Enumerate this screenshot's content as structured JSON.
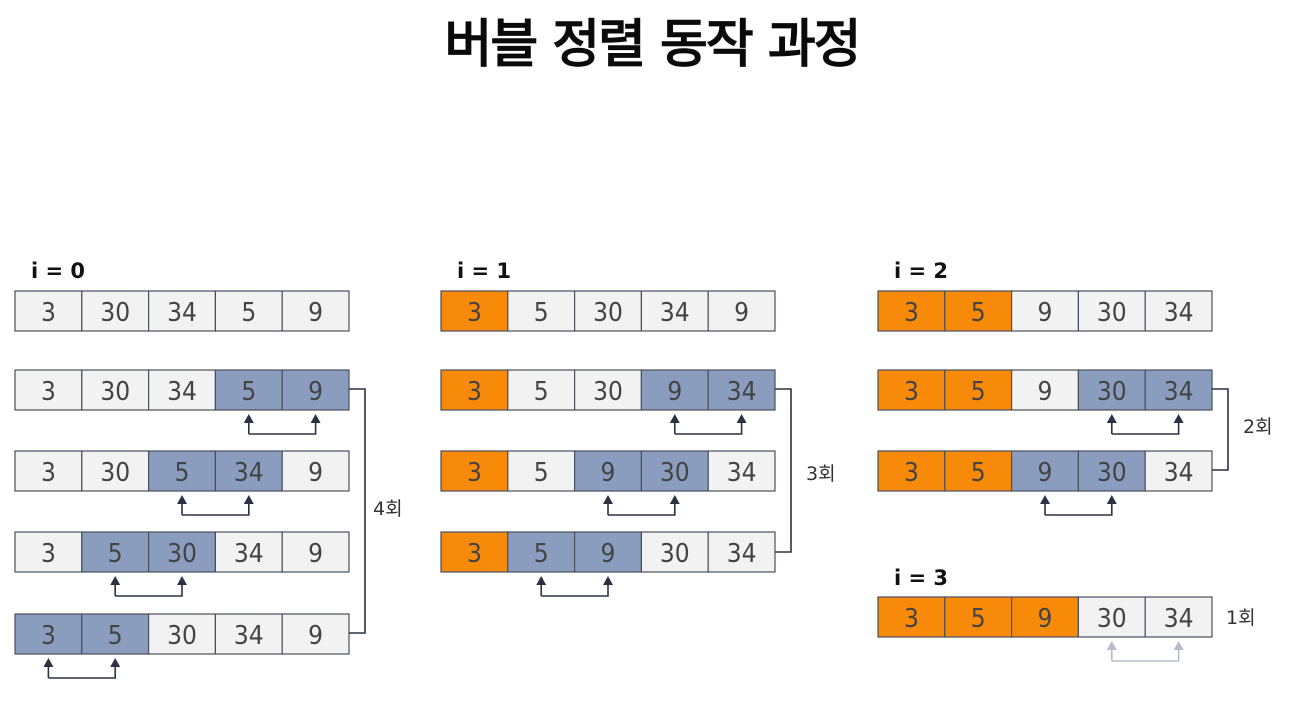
{
  "title": "버블 정렬 동작 과정",
  "colors": {
    "sorted": "#f88a0a",
    "compared": "#8a9dbf",
    "normal": "#f2f2f2",
    "border": "#4a4f5c",
    "arrow": "#2b3342",
    "arrow_faded": "#b4bec8"
  },
  "passes": [
    {
      "label": "i = 0",
      "count_label": "4회",
      "rows": [
        {
          "values": [
            "3",
            "30",
            "34",
            "5",
            "9"
          ],
          "states": [
            "n",
            "n",
            "n",
            "n",
            "n"
          ]
        },
        {
          "values": [
            "3",
            "30",
            "34",
            "5",
            "9"
          ],
          "states": [
            "n",
            "n",
            "n",
            "c",
            "c"
          ],
          "swap": [
            3,
            4
          ]
        },
        {
          "values": [
            "3",
            "30",
            "5",
            "34",
            "9"
          ],
          "states": [
            "n",
            "n",
            "c",
            "c",
            "n"
          ],
          "swap": [
            2,
            3
          ]
        },
        {
          "values": [
            "3",
            "5",
            "30",
            "34",
            "9"
          ],
          "states": [
            "n",
            "c",
            "c",
            "n",
            "n"
          ],
          "swap": [
            1,
            2
          ]
        },
        {
          "values": [
            "3",
            "5",
            "30",
            "34",
            "9"
          ],
          "states": [
            "c",
            "c",
            "n",
            "n",
            "n"
          ],
          "swap": [
            0,
            1
          ]
        }
      ]
    },
    {
      "label": "i = 1",
      "count_label": "3회",
      "rows": [
        {
          "values": [
            "3",
            "5",
            "30",
            "34",
            "9"
          ],
          "states": [
            "s",
            "n",
            "n",
            "n",
            "n"
          ]
        },
        {
          "values": [
            "3",
            "5",
            "30",
            "9",
            "34"
          ],
          "states": [
            "s",
            "n",
            "n",
            "c",
            "c"
          ],
          "swap": [
            3,
            4
          ]
        },
        {
          "values": [
            "3",
            "5",
            "9",
            "30",
            "34"
          ],
          "states": [
            "s",
            "n",
            "c",
            "c",
            "n"
          ],
          "swap": [
            2,
            3
          ]
        },
        {
          "values": [
            "3",
            "5",
            "9",
            "30",
            "34"
          ],
          "states": [
            "s",
            "c",
            "c",
            "n",
            "n"
          ],
          "swap": [
            1,
            2
          ]
        }
      ]
    },
    {
      "label": "i = 2",
      "count_label": "2회",
      "rows": [
        {
          "values": [
            "3",
            "5",
            "9",
            "30",
            "34"
          ],
          "states": [
            "s",
            "s",
            "n",
            "n",
            "n"
          ]
        },
        {
          "values": [
            "3",
            "5",
            "9",
            "30",
            "34"
          ],
          "states": [
            "s",
            "s",
            "n",
            "c",
            "c"
          ],
          "swap": [
            3,
            4
          ]
        },
        {
          "values": [
            "3",
            "5",
            "9",
            "30",
            "34"
          ],
          "states": [
            "s",
            "s",
            "c",
            "c",
            "n"
          ],
          "swap": [
            2,
            3
          ]
        }
      ]
    },
    {
      "label": "i = 3",
      "count_label": "1회",
      "rows": [
        {
          "values": [
            "3",
            "5",
            "9",
            "30",
            "34"
          ],
          "states": [
            "s",
            "s",
            "s",
            "n",
            "n"
          ],
          "swap": [
            3,
            4
          ],
          "faded": true
        }
      ]
    }
  ]
}
